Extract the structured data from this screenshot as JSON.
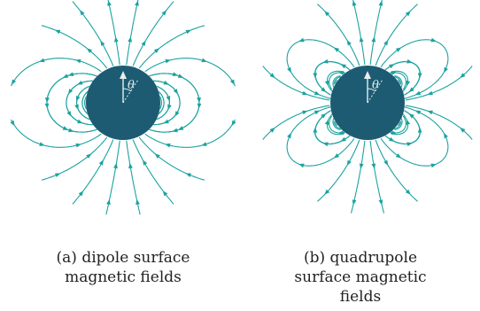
{
  "colors": {
    "field_line": "#1aa3a0",
    "sphere": "#1d5b73",
    "axis": "#e9eef0"
  },
  "panels": [
    {
      "id": "a",
      "kind": "dipole",
      "angle_label": "θ",
      "caption_lines": [
        "(a) dipole surface",
        "magnetic fields"
      ]
    },
    {
      "id": "b",
      "kind": "quadrupole",
      "angle_label": "θ",
      "caption_lines": [
        "(b) quadrupole",
        "surface magnetic",
        "fields"
      ]
    }
  ]
}
